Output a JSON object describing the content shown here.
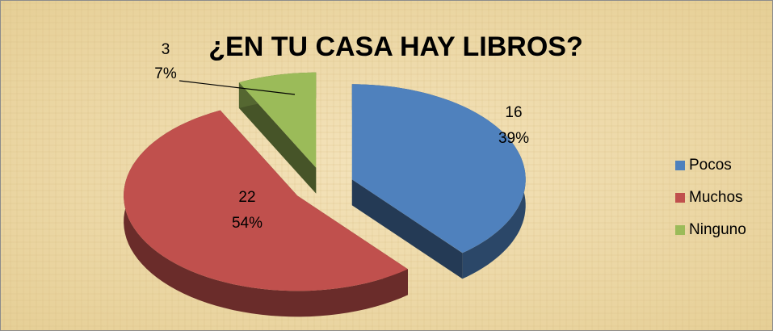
{
  "chart_data": {
    "type": "pie",
    "title": "¿EN TU CASA HAY LIBROS?",
    "categories": [
      "Pocos",
      "Muchos",
      "Ninguno"
    ],
    "values": [
      16,
      22,
      3
    ],
    "percent_labels": [
      "39%",
      "54%",
      "7%"
    ],
    "colors": [
      "#4f81bd",
      "#c0504d",
      "#9bbb59"
    ],
    "legend": "right",
    "three_d": true,
    "exploded": true
  }
}
